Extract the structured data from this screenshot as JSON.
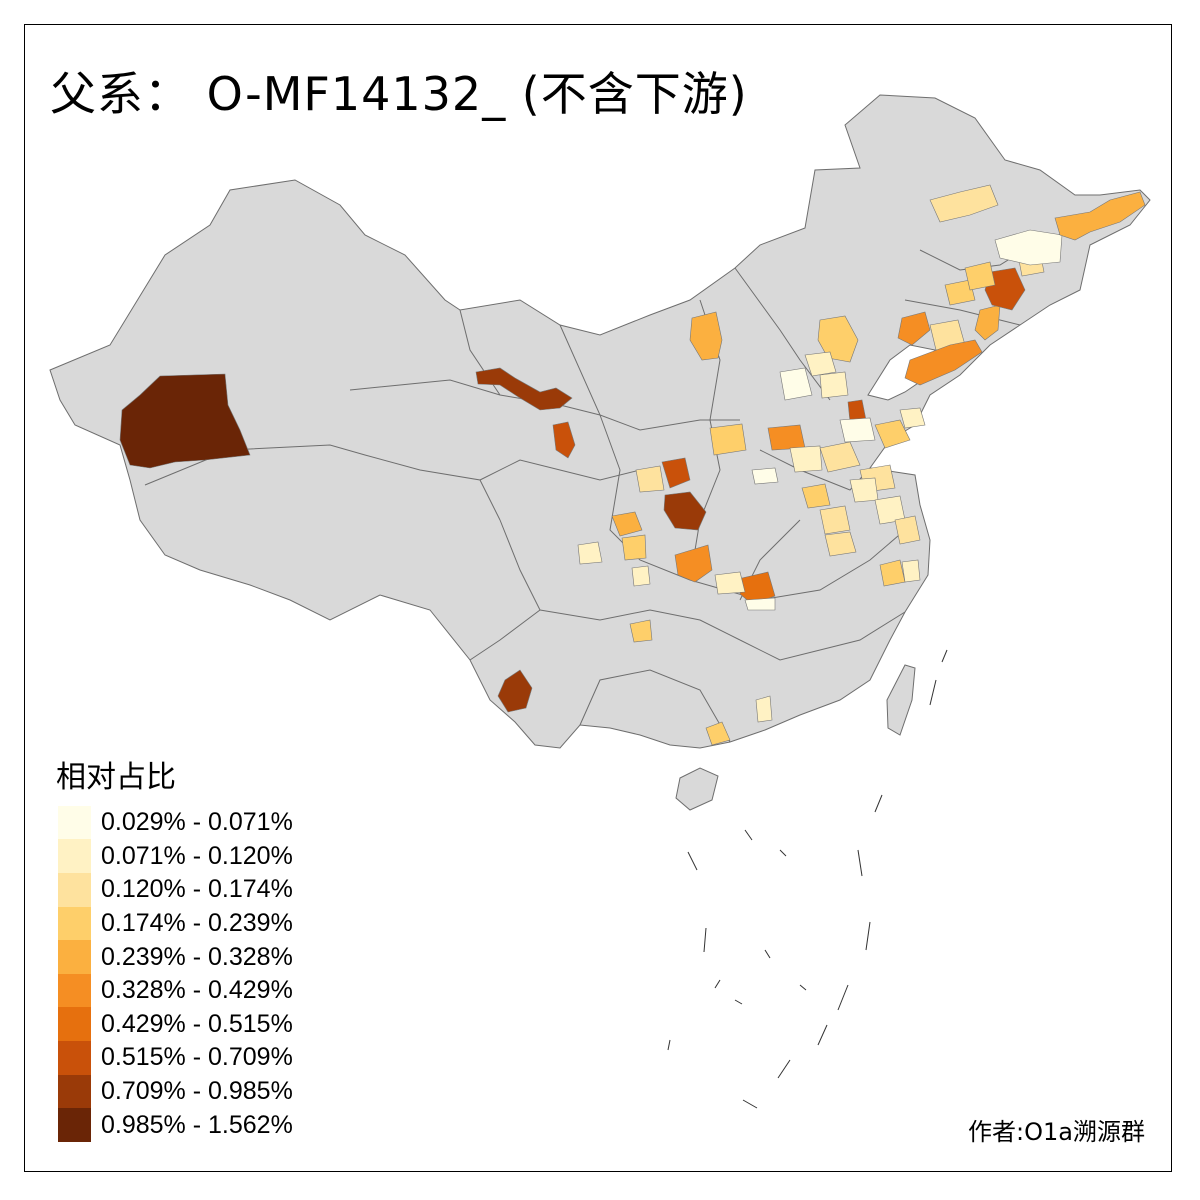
{
  "title": "父系： O-MF14132_ (不含下游)",
  "legend": {
    "title": "相对占比",
    "classes": [
      {
        "label": "0.029% - 0.071%",
        "color": "#FFFDE8"
      },
      {
        "label": "0.071% - 0.120%",
        "color": "#FFF2C4"
      },
      {
        "label": "0.120% - 0.174%",
        "color": "#FEE29E"
      },
      {
        "label": "0.174% - 0.239%",
        "color": "#FECF6A"
      },
      {
        "label": "0.239% - 0.328%",
        "color": "#FBB040"
      },
      {
        "label": "0.328% - 0.429%",
        "color": "#F58E23"
      },
      {
        "label": "0.429% - 0.515%",
        "color": "#E6700E"
      },
      {
        "label": "0.515% - 0.709%",
        "color": "#C9510A"
      },
      {
        "label": "0.709% - 0.985%",
        "color": "#9A3A08"
      },
      {
        "label": "0.985% - 1.562%",
        "color": "#6A2506"
      }
    ]
  },
  "credit": "作者:O1a溯源群",
  "map": {
    "base_fill": "#D9D9D9",
    "border_color": "#6E6E6E"
  }
}
